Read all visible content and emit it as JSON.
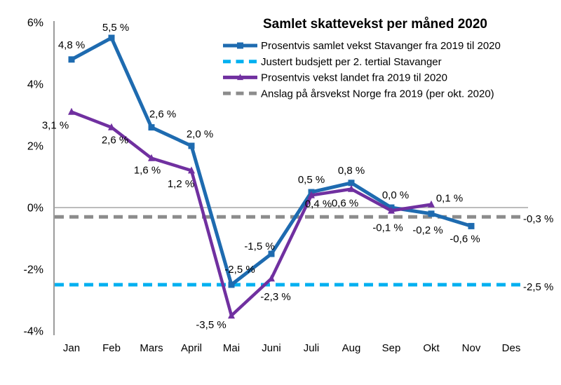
{
  "chart_data": {
    "type": "line",
    "title": "Samlet skattevekst per måned 2020",
    "xlabel": "",
    "ylabel": "",
    "categories": [
      "Jan",
      "Feb",
      "Mars",
      "April",
      "Mai",
      "Juni",
      "Juli",
      "Aug",
      "Sep",
      "Okt",
      "Nov",
      "Des"
    ],
    "ylim": [
      -4,
      6
    ],
    "yticks": [
      {
        "v": 6,
        "label": "6%"
      },
      {
        "v": 4,
        "label": "4%"
      },
      {
        "v": 2,
        "label": "2%"
      },
      {
        "v": 0,
        "label": "0%"
      },
      {
        "v": -2,
        "label": "-2%"
      },
      {
        "v": -4,
        "label": "-4%"
      }
    ],
    "grid": false,
    "zero_line": true,
    "legend_position": "top-right",
    "series": [
      {
        "id": "stavanger-vekst",
        "name": "Prosentvis samlet vekst Stavanger fra 2019 til 2020",
        "type": "line",
        "color": "#1E6BB0",
        "weight": 5,
        "marker": "square",
        "dash": null,
        "values": [
          4.8,
          5.5,
          2.6,
          2.0,
          -2.5,
          -1.5,
          0.5,
          0.8,
          0.0,
          -0.2,
          -0.6,
          null
        ],
        "labels": [
          "4,8 %",
          "5,5 %",
          "2,6 %",
          "2,0 %",
          "-2,5 %",
          "-1,5 %",
          "0,5 %",
          "0,8 %",
          "0,0 %",
          "-0,2 %",
          "-0,6 %",
          null
        ],
        "label_color": "#000000",
        "label_offsets": [
          [
            0,
            -16
          ],
          [
            6,
            -10
          ],
          [
            16,
            -14
          ],
          [
            12,
            -12
          ],
          [
            12,
            -17
          ],
          [
            -17,
            -6
          ],
          [
            0,
            -13
          ],
          [
            0,
            -13
          ],
          [
            6,
            -13
          ],
          [
            -5,
            28
          ],
          [
            -9,
            23
          ],
          null
        ]
      },
      {
        "id": "budsjett-stavanger",
        "name": "Justert budsjett per 2. tertial Stavanger",
        "type": "hline",
        "color": "#00B0F0",
        "weight": 5,
        "marker": null,
        "dash": [
          13,
          8
        ],
        "value": -2.5,
        "right_label": "-2,5 %"
      },
      {
        "id": "landet-vekst",
        "name": "Prosentvis vekst landet fra 2019 til 2020",
        "type": "line",
        "color": "#7030A0",
        "weight": 4.5,
        "marker": "triangle",
        "dash": null,
        "values": [
          3.1,
          2.6,
          1.6,
          1.2,
          -3.5,
          -2.3,
          0.4,
          0.6,
          -0.1,
          0.1,
          null,
          null
        ],
        "labels": [
          "3,1 %",
          "2,6 %",
          "1,6 %",
          "1,2 %",
          "-3,5 %",
          "-2,3 %",
          "0,4 %",
          "0,6 %",
          "-0,1 %",
          "0,1 %",
          null,
          null
        ],
        "label_color": "#7F7F7F",
        "label_offsets": [
          [
            -23,
            24
          ],
          [
            5,
            23
          ],
          [
            -6,
            22
          ],
          [
            -15,
            24
          ],
          [
            -29,
            18
          ],
          [
            6,
            31
          ],
          [
            10,
            17
          ],
          [
            -9,
            25
          ],
          [
            -5,
            29
          ],
          [
            26,
            -4
          ],
          null,
          null
        ]
      },
      {
        "id": "anslag-norge",
        "name": "Anslag på årsvekst Norge fra 2019 (per okt. 2020)",
        "type": "hline",
        "color": "#8C8C8C",
        "weight": 5,
        "marker": null,
        "dash": [
          13,
          8
        ],
        "value": -0.3,
        "right_label": "-0,3 %"
      }
    ],
    "axis_colors": {
      "y_axis_line": "#9B9B9B",
      "zero_line": "#A6A6A6"
    }
  }
}
